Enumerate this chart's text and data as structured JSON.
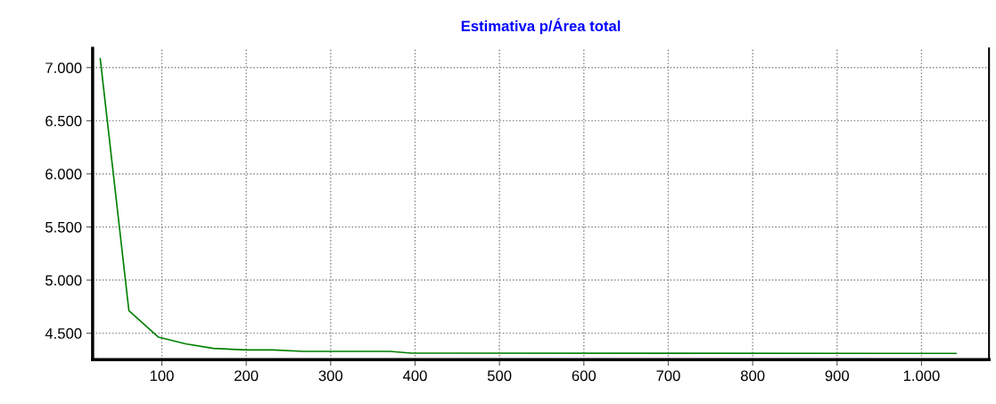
{
  "chart_data": {
    "type": "line",
    "title": "Estimativa p/Área total",
    "x": [
      27,
      61,
      96,
      128,
      161,
      200,
      232,
      267,
      370,
      396,
      1041
    ],
    "series": [
      {
        "color": "#008000",
        "values": [
          7085,
          4711,
          4463,
          4400,
          4357,
          4343,
          4343,
          4329,
          4329,
          4312,
          4310
        ]
      }
    ],
    "xlim": [
      18,
      1080
    ],
    "ylim": [
      4252,
      7180
    ],
    "xticks": [
      {
        "value": 100,
        "label": "100"
      },
      {
        "value": 200,
        "label": "200"
      },
      {
        "value": 300,
        "label": "300"
      },
      {
        "value": 400,
        "label": "400"
      },
      {
        "value": 500,
        "label": "500"
      },
      {
        "value": 600,
        "label": "600"
      },
      {
        "value": 700,
        "label": "700"
      },
      {
        "value": 800,
        "label": "800"
      },
      {
        "value": 900,
        "label": "900"
      },
      {
        "value": 1000,
        "label": "1.000"
      }
    ],
    "yticks": [
      {
        "value": 4500,
        "label": "4.500"
      },
      {
        "value": 5000,
        "label": "5.000"
      },
      {
        "value": 5500,
        "label": "5.500"
      },
      {
        "value": 6000,
        "label": "6.000"
      },
      {
        "value": 6500,
        "label": "6.500"
      },
      {
        "value": 7000,
        "label": "7.000"
      }
    ],
    "grid": true,
    "marker": "none",
    "line_style": "solid"
  }
}
